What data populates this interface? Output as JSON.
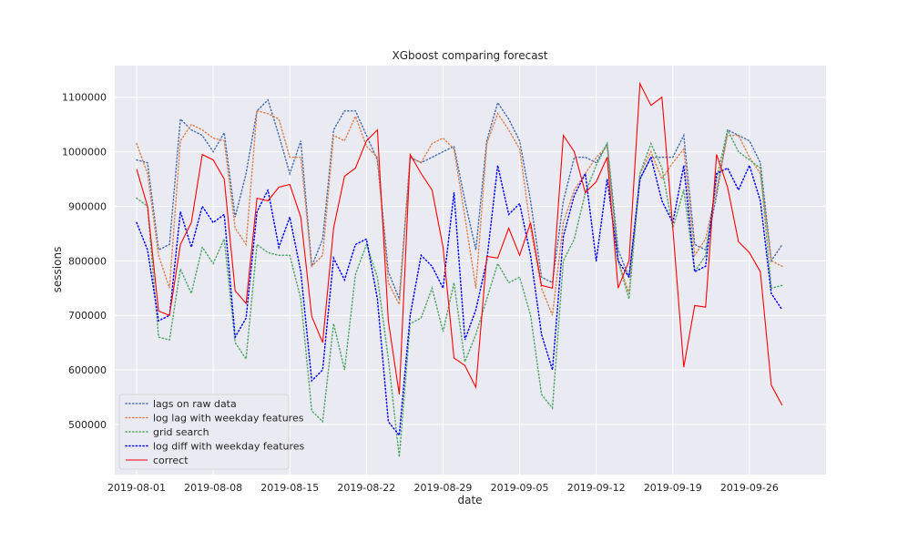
{
  "chart_data": {
    "type": "line",
    "title": "XGboost comparing forecast",
    "xlabel": "date",
    "ylabel": "sessions",
    "x_start": "2019-08-01",
    "x_ticks": [
      "2019-08-01",
      "2019-08-08",
      "2019-08-15",
      "2019-08-22",
      "2019-08-29",
      "2019-09-05",
      "2019-09-12",
      "2019-09-19",
      "2019-09-26"
    ],
    "xlim": [
      "2019-07-30",
      "2019-10-03"
    ],
    "y_ticks": [
      500000,
      600000,
      700000,
      800000,
      900000,
      1000000,
      1100000
    ],
    "ylim": [
      408000,
      1158000
    ],
    "grid": true,
    "legend_position": "lower-left",
    "background": "#eaeaf2",
    "series": [
      {
        "name": "lags on raw data",
        "color": "#4c72b0",
        "style": "dotted",
        "values": [
          985000,
          980000,
          820000,
          830000,
          1060000,
          1040000,
          1030000,
          1000000,
          1035000,
          880000,
          960000,
          1075000,
          1095000,
          1030000,
          960000,
          1020000,
          790000,
          840000,
          1040000,
          1075000,
          1075000,
          1030000,
          985000,
          780000,
          730000,
          990000,
          980000,
          990000,
          1000000,
          1010000,
          910000,
          820000,
          1020000,
          1090000,
          1060000,
          1020000,
          910000,
          770000,
          760000,
          910000,
          990000,
          990000,
          980000,
          1015000,
          820000,
          770000,
          950000,
          990000,
          990000,
          990000,
          1030000,
          830000,
          820000,
          920000,
          1040000,
          1030000,
          1020000,
          980000,
          800000,
          830000
        ]
      },
      {
        "name": "log lag with weekday features",
        "color": "#dd8452",
        "style": "dotted",
        "values": [
          1015000,
          960000,
          810000,
          750000,
          1020000,
          1050000,
          1040000,
          1025000,
          1020000,
          860000,
          830000,
          1075000,
          1070000,
          1060000,
          990000,
          990000,
          790000,
          810000,
          1030000,
          1020000,
          1065000,
          1010000,
          990000,
          760000,
          720000,
          990000,
          980000,
          1015000,
          1025000,
          1005000,
          880000,
          750000,
          1015000,
          1070000,
          1040000,
          1005000,
          860000,
          750000,
          700000,
          870000,
          930000,
          960000,
          990000,
          1010000,
          800000,
          740000,
          960000,
          1000000,
          950000,
          980000,
          1005000,
          810000,
          840000,
          930000,
          1030000,
          1030000,
          990000,
          960000,
          800000,
          790000
        ]
      },
      {
        "name": "grid search",
        "color": "#55a868",
        "style": "dotted",
        "values": [
          915000,
          900000,
          660000,
          655000,
          785000,
          740000,
          825000,
          795000,
          840000,
          650000,
          620000,
          830000,
          815000,
          810000,
          810000,
          730000,
          525000,
          505000,
          685000,
          600000,
          775000,
          830000,
          770000,
          620000,
          440000,
          685000,
          695000,
          750000,
          670000,
          760000,
          615000,
          665000,
          730000,
          795000,
          760000,
          770000,
          700000,
          555000,
          530000,
          800000,
          840000,
          925000,
          975000,
          1015000,
          800000,
          730000,
          960000,
          1015000,
          970000,
          860000,
          930000,
          780000,
          810000,
          950000,
          1040000,
          1000000,
          985000,
          970000,
          750000,
          755000
        ]
      },
      {
        "name": "log diff with weekday features",
        "color": "#0000ff",
        "style": "dotted",
        "values": [
          870000,
          820000,
          690000,
          700000,
          890000,
          825000,
          900000,
          870000,
          885000,
          660000,
          695000,
          890000,
          930000,
          825000,
          880000,
          780000,
          580000,
          600000,
          805000,
          765000,
          830000,
          840000,
          730000,
          505000,
          480000,
          700000,
          810000,
          790000,
          750000,
          925000,
          655000,
          710000,
          800000,
          975000,
          885000,
          905000,
          810000,
          665000,
          600000,
          845000,
          920000,
          960000,
          800000,
          950000,
          800000,
          770000,
          950000,
          990000,
          910000,
          870000,
          975000,
          780000,
          790000,
          960000,
          970000,
          930000,
          975000,
          910000,
          740000,
          710000
        ]
      },
      {
        "name": "correct",
        "color": "#ff0000",
        "style": "solid",
        "values": [
          968000,
          900000,
          708000,
          700000,
          830000,
          870000,
          995000,
          985000,
          950000,
          745000,
          722000,
          915000,
          910000,
          935000,
          940000,
          880000,
          698000,
          650000,
          860000,
          955000,
          970000,
          1020000,
          1040000,
          690000,
          555000,
          995000,
          960000,
          930000,
          825000,
          622000,
          608000,
          568000,
          808000,
          805000,
          860000,
          810000,
          870000,
          755000,
          750000,
          1030000,
          1000000,
          925000,
          945000,
          990000,
          750000,
          800000,
          1125000,
          1085000,
          1100000,
          860000,
          605000,
          718000,
          715000,
          995000,
          935000,
          835000,
          815000,
          780000,
          572000,
          535000
        ]
      }
    ]
  }
}
